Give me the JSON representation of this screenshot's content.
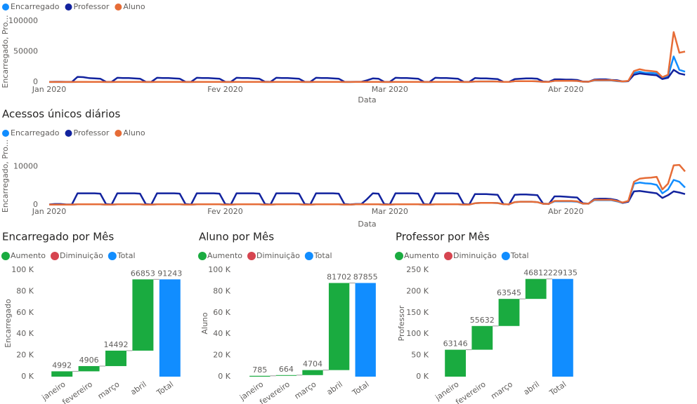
{
  "chart_data": [
    {
      "type": "line",
      "x_label": "Data",
      "y_label": "Encarregado, Pro...",
      "x": [
        0,
        1,
        2,
        3,
        4,
        5,
        6,
        7,
        8,
        9,
        10,
        11,
        12,
        13,
        14,
        15,
        16,
        17,
        18,
        19,
        20,
        21,
        22,
        23,
        24,
        25,
        26,
        27,
        28,
        29,
        30,
        31,
        32,
        33,
        34,
        35,
        36,
        37,
        38,
        39,
        40,
        41,
        42,
        43,
        44,
        45,
        46,
        47,
        48,
        49,
        50,
        51,
        52,
        53,
        54,
        55,
        56,
        57,
        58,
        59,
        60,
        61,
        62,
        63,
        64,
        65,
        66,
        67,
        68,
        69,
        70,
        71,
        72,
        73,
        74,
        75,
        76,
        77,
        78,
        79,
        80,
        81,
        82,
        83,
        84,
        85,
        86,
        87,
        88,
        89,
        90,
        91,
        92,
        93,
        94,
        95,
        96,
        97,
        98,
        99,
        100,
        101,
        102,
        103,
        104,
        105,
        106,
        107,
        108,
        109,
        110,
        111,
        112
      ],
      "xlim": [
        0,
        112
      ],
      "xticks": [
        {
          "value": 0,
          "label": "Jan 2020"
        },
        {
          "value": 31,
          "label": "Fev 2020"
        },
        {
          "value": 60,
          "label": "Mar 2020"
        },
        {
          "value": 91,
          "label": "Abr 2020"
        }
      ],
      "ylim": [
        0,
        100000
      ],
      "yticks": [
        0,
        50000,
        100000
      ],
      "series": [
        {
          "name": "Encarregado",
          "color": "#118dff",
          "values": [
            100,
            100,
            100,
            100,
            100,
            300,
            300,
            300,
            300,
            300,
            100,
            100,
            300,
            300,
            300,
            300,
            300,
            100,
            100,
            300,
            300,
            300,
            300,
            300,
            100,
            100,
            300,
            300,
            300,
            300,
            300,
            100,
            100,
            300,
            300,
            300,
            300,
            300,
            100,
            100,
            300,
            300,
            300,
            300,
            300,
            100,
            100,
            300,
            300,
            300,
            300,
            300,
            100,
            100,
            300,
            300,
            300,
            300,
            300,
            100,
            100,
            300,
            300,
            300,
            300,
            300,
            100,
            100,
            300,
            300,
            300,
            300,
            300,
            100,
            100,
            800,
            1000,
            1000,
            1000,
            900,
            300,
            300,
            1500,
            1500,
            1500,
            1500,
            1200,
            400,
            400,
            2000,
            2000,
            2000,
            2000,
            1800,
            600,
            600,
            2500,
            2500,
            2500,
            2500,
            1500,
            800,
            1500,
            15000,
            17000,
            15000,
            15000,
            14000,
            6000,
            9000,
            42000,
            20000,
            17000
          ]
        },
        {
          "name": "Professor",
          "color": "#12239e",
          "values": [
            300,
            500,
            500,
            200,
            200,
            8500,
            8000,
            6500,
            6000,
            5500,
            500,
            300,
            7000,
            6500,
            6500,
            6000,
            5500,
            500,
            300,
            7000,
            6500,
            6500,
            6000,
            5500,
            500,
            300,
            7000,
            6500,
            6500,
            6000,
            5500,
            500,
            300,
            7000,
            6500,
            6500,
            6000,
            5500,
            500,
            300,
            7000,
            6500,
            6500,
            6000,
            5500,
            500,
            300,
            7000,
            6500,
            6500,
            6000,
            5500,
            500,
            300,
            500,
            500,
            3000,
            6000,
            5500,
            500,
            300,
            7000,
            6500,
            6500,
            6000,
            5500,
            500,
            300,
            7000,
            6500,
            6500,
            6000,
            5500,
            500,
            300,
            6500,
            6000,
            6000,
            5500,
            5000,
            500,
            300,
            5000,
            5500,
            6000,
            6000,
            5500,
            800,
            500,
            4500,
            4500,
            4000,
            4000,
            3500,
            800,
            600,
            4000,
            4500,
            4500,
            3500,
            3000,
            1000,
            1500,
            12000,
            14000,
            13000,
            12000,
            11000,
            5000,
            7000,
            20000,
            14000,
            12000
          ]
        },
        {
          "name": "Aluno",
          "color": "#e66c37",
          "values": [
            100,
            100,
            100,
            100,
            100,
            300,
            300,
            300,
            300,
            300,
            100,
            100,
            300,
            300,
            300,
            300,
            300,
            100,
            100,
            300,
            300,
            300,
            300,
            300,
            100,
            100,
            300,
            300,
            300,
            300,
            300,
            100,
            100,
            300,
            300,
            300,
            300,
            300,
            100,
            100,
            300,
            300,
            300,
            300,
            300,
            100,
            100,
            300,
            300,
            300,
            300,
            300,
            100,
            100,
            300,
            300,
            300,
            300,
            300,
            100,
            100,
            300,
            300,
            300,
            300,
            300,
            100,
            100,
            300,
            300,
            300,
            300,
            300,
            100,
            100,
            800,
            1000,
            1000,
            1000,
            900,
            300,
            300,
            1500,
            1500,
            1500,
            1500,
            1200,
            400,
            400,
            2000,
            2000,
            2000,
            2000,
            1800,
            600,
            600,
            3000,
            3000,
            3000,
            3000,
            2000,
            1000,
            2000,
            18000,
            21000,
            19000,
            18000,
            17000,
            8000,
            12000,
            82000,
            48000,
            50000
          ]
        }
      ]
    },
    {
      "type": "line",
      "title": "Acessos únicos diários",
      "x_label": "Data",
      "y_label": "Encarregado, Pro...",
      "x": [
        0,
        1,
        2,
        3,
        4,
        5,
        6,
        7,
        8,
        9,
        10,
        11,
        12,
        13,
        14,
        15,
        16,
        17,
        18,
        19,
        20,
        21,
        22,
        23,
        24,
        25,
        26,
        27,
        28,
        29,
        30,
        31,
        32,
        33,
        34,
        35,
        36,
        37,
        38,
        39,
        40,
        41,
        42,
        43,
        44,
        45,
        46,
        47,
        48,
        49,
        50,
        51,
        52,
        53,
        54,
        55,
        56,
        57,
        58,
        59,
        60,
        61,
        62,
        63,
        64,
        65,
        66,
        67,
        68,
        69,
        70,
        71,
        72,
        73,
        74,
        75,
        76,
        77,
        78,
        79,
        80,
        81,
        82,
        83,
        84,
        85,
        86,
        87,
        88,
        89,
        90,
        91,
        92,
        93,
        94,
        95,
        96,
        97,
        98,
        99,
        100,
        101,
        102,
        103,
        104,
        105,
        106,
        107,
        108,
        109,
        110,
        111,
        112
      ],
      "xlim": [
        0,
        112
      ],
      "xticks": [
        {
          "value": 0,
          "label": "Jan 2020"
        },
        {
          "value": 31,
          "label": "Fev 2020"
        },
        {
          "value": 60,
          "label": "Mar 2020"
        },
        {
          "value": 91,
          "label": "Abr 2020"
        }
      ],
      "ylim": [
        0,
        15000
      ],
      "yticks": [
        0,
        10000
      ],
      "series": [
        {
          "name": "Encarregado",
          "color": "#118dff",
          "values": [
            50,
            50,
            50,
            50,
            50,
            150,
            150,
            150,
            150,
            150,
            50,
            50,
            150,
            150,
            150,
            150,
            150,
            50,
            50,
            150,
            150,
            150,
            150,
            150,
            50,
            50,
            150,
            150,
            150,
            150,
            150,
            50,
            50,
            150,
            150,
            150,
            150,
            150,
            50,
            50,
            150,
            150,
            150,
            150,
            150,
            50,
            50,
            150,
            150,
            150,
            150,
            150,
            50,
            50,
            150,
            150,
            150,
            150,
            150,
            50,
            50,
            150,
            150,
            150,
            150,
            150,
            50,
            50,
            150,
            150,
            150,
            150,
            150,
            50,
            50,
            400,
            500,
            500,
            500,
            450,
            150,
            150,
            700,
            800,
            800,
            800,
            700,
            250,
            250,
            900,
            900,
            900,
            900,
            800,
            300,
            300,
            1200,
            1200,
            1200,
            1200,
            900,
            500,
            900,
            5500,
            5800,
            5600,
            5500,
            5200,
            3000,
            4000,
            6500,
            6000,
            4500
          ]
        },
        {
          "name": "Professor",
          "color": "#12239e",
          "values": [
            100,
            200,
            200,
            100,
            100,
            3000,
            3000,
            3000,
            3000,
            2900,
            200,
            100,
            3000,
            3000,
            3000,
            3000,
            2900,
            200,
            100,
            3000,
            3000,
            3000,
            3000,
            2900,
            200,
            100,
            3000,
            3000,
            3000,
            3000,
            2900,
            200,
            100,
            3000,
            3000,
            3000,
            3000,
            2900,
            200,
            100,
            3000,
            3000,
            3000,
            3000,
            2900,
            200,
            100,
            3000,
            3000,
            3000,
            3000,
            2900,
            200,
            100,
            200,
            200,
            1500,
            3000,
            2900,
            200,
            100,
            3000,
            3000,
            3000,
            3000,
            2900,
            200,
            100,
            3000,
            3000,
            3000,
            3000,
            2900,
            200,
            100,
            2800,
            2800,
            2800,
            2700,
            2600,
            200,
            100,
            2600,
            2700,
            2700,
            2600,
            2500,
            300,
            200,
            2200,
            2200,
            2100,
            2000,
            1900,
            400,
            300,
            1500,
            1600,
            1600,
            1500,
            1200,
            500,
            800,
            3500,
            3600,
            3400,
            3200,
            3000,
            1800,
            2500,
            3500,
            3200,
            2800
          ]
        },
        {
          "name": "Aluno",
          "color": "#e66c37",
          "values": [
            50,
            50,
            50,
            50,
            50,
            150,
            150,
            150,
            150,
            150,
            50,
            50,
            150,
            150,
            150,
            150,
            150,
            50,
            50,
            150,
            150,
            150,
            150,
            150,
            50,
            50,
            150,
            150,
            150,
            150,
            150,
            50,
            50,
            150,
            150,
            150,
            150,
            150,
            50,
            50,
            150,
            150,
            150,
            150,
            150,
            50,
            50,
            150,
            150,
            150,
            150,
            150,
            50,
            50,
            150,
            150,
            150,
            150,
            150,
            50,
            50,
            150,
            150,
            150,
            150,
            150,
            50,
            50,
            150,
            150,
            150,
            150,
            150,
            50,
            50,
            400,
            500,
            500,
            500,
            450,
            150,
            150,
            700,
            800,
            800,
            800,
            700,
            250,
            250,
            1000,
            1000,
            1000,
            1000,
            900,
            300,
            300,
            1300,
            1300,
            1300,
            1300,
            1000,
            600,
            1000,
            6000,
            6800,
            7000,
            7100,
            7300,
            4000,
            5500,
            10300,
            10400,
            8700
          ]
        }
      ]
    },
    {
      "type": "waterfall",
      "title": "Encarregado por Mês",
      "y_label": "Encarregado",
      "legend": [
        {
          "name": "Aumento",
          "color": "#1aab40"
        },
        {
          "name": "Diminuição",
          "color": "#d64550"
        },
        {
          "name": "Total",
          "color": "#118dff"
        }
      ],
      "categories": [
        "janeiro",
        "fevereiro",
        "março",
        "abril",
        "Total"
      ],
      "values": [
        4992,
        4906,
        14492,
        66853,
        91243
      ],
      "ylim": [
        0,
        100000
      ],
      "yticks": [
        {
          "value": 0,
          "label": "0 K"
        },
        {
          "value": 20000,
          "label": "20 K"
        },
        {
          "value": 40000,
          "label": "40 K"
        },
        {
          "value": 60000,
          "label": "60 K"
        },
        {
          "value": 80000,
          "label": "80 K"
        },
        {
          "value": 100000,
          "label": "100 K"
        }
      ]
    },
    {
      "type": "waterfall",
      "title": "Aluno por Mês",
      "y_label": "Aluno",
      "legend": [
        {
          "name": "Aumento",
          "color": "#1aab40"
        },
        {
          "name": "Diminuição",
          "color": "#d64550"
        },
        {
          "name": "Total",
          "color": "#118dff"
        }
      ],
      "categories": [
        "janeiro",
        "fevereiro",
        "março",
        "abril",
        "Total"
      ],
      "values": [
        785,
        664,
        4704,
        81702,
        87855
      ],
      "ylim": [
        0,
        100000
      ],
      "yticks": [
        {
          "value": 0,
          "label": "0 K"
        },
        {
          "value": 20000,
          "label": "20 K"
        },
        {
          "value": 40000,
          "label": "40 K"
        },
        {
          "value": 60000,
          "label": "60 K"
        },
        {
          "value": 80000,
          "label": "80 K"
        },
        {
          "value": 100000,
          "label": "100 K"
        }
      ]
    },
    {
      "type": "waterfall",
      "title": "Professor por Mês",
      "y_label": "Professor",
      "legend": [
        {
          "name": "Aumento",
          "color": "#1aab40"
        },
        {
          "name": "Diminuição",
          "color": "#d64550"
        },
        {
          "name": "Total",
          "color": "#118dff"
        }
      ],
      "categories": [
        "janeiro",
        "fevereiro",
        "março",
        "abril",
        "Total"
      ],
      "values": [
        63146,
        55632,
        63545,
        46812,
        229135
      ],
      "ylim": [
        0,
        250000
      ],
      "yticks": [
        {
          "value": 0,
          "label": "0 K"
        },
        {
          "value": 50000,
          "label": "50 K"
        },
        {
          "value": 100000,
          "label": "100 K"
        },
        {
          "value": 150000,
          "label": "150 K"
        },
        {
          "value": 200000,
          "label": "200 K"
        },
        {
          "value": 250000,
          "label": "250 K"
        }
      ]
    }
  ]
}
